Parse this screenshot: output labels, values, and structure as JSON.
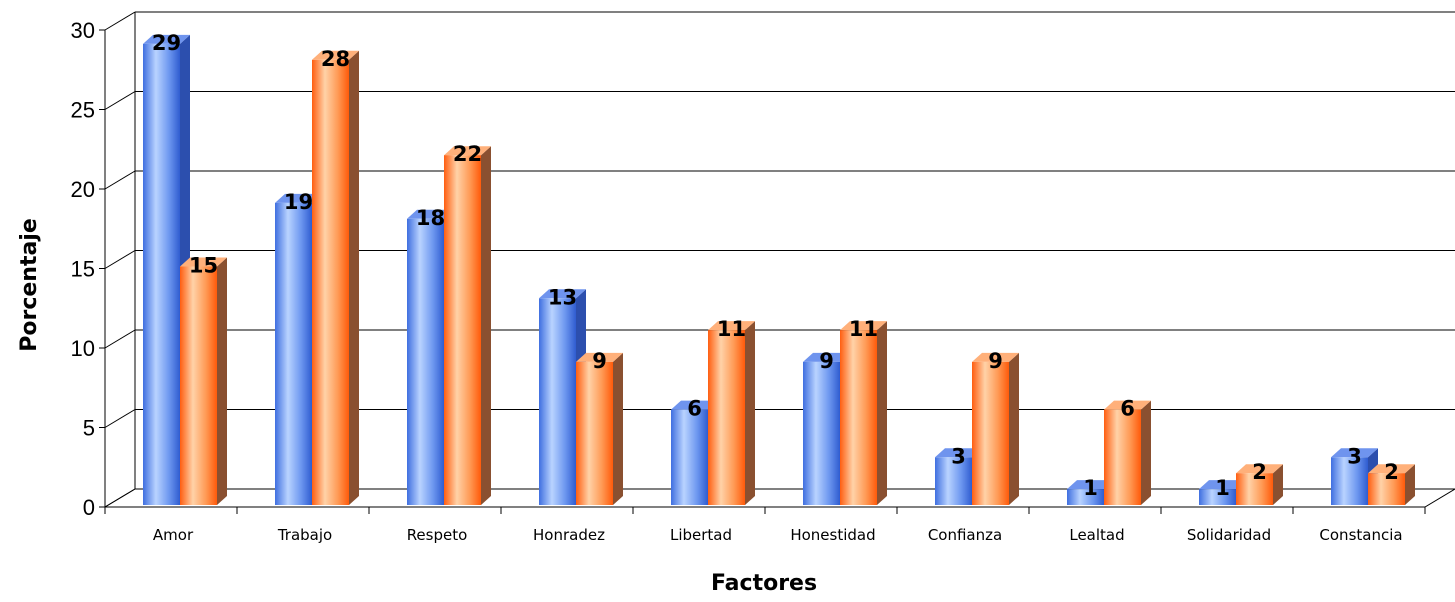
{
  "chart_data": {
    "type": "bar",
    "style": "3d-clustered-column",
    "title": "",
    "xlabel": "Factores",
    "ylabel": "Porcentaje",
    "ylim": [
      0,
      30
    ],
    "yticks": [
      "0",
      "5",
      "10",
      "15",
      "20",
      "25",
      "30"
    ],
    "grid": true,
    "legend": "none",
    "categories": [
      "Amor",
      "Trabajo",
      "Respeto",
      "Honradez",
      "Libertad",
      "Honestidad",
      "Confianza",
      "Lealtad",
      "Solidaridad",
      "Constancia"
    ],
    "series": [
      {
        "values": [
          29,
          19,
          18,
          13,
          6,
          9,
          3,
          1,
          1,
          3
        ],
        "color": "#4a78e8"
      },
      {
        "values": [
          15,
          28,
          22,
          9,
          11,
          11,
          9,
          6,
          2,
          2
        ],
        "color": "#ff6a1a"
      }
    ]
  }
}
